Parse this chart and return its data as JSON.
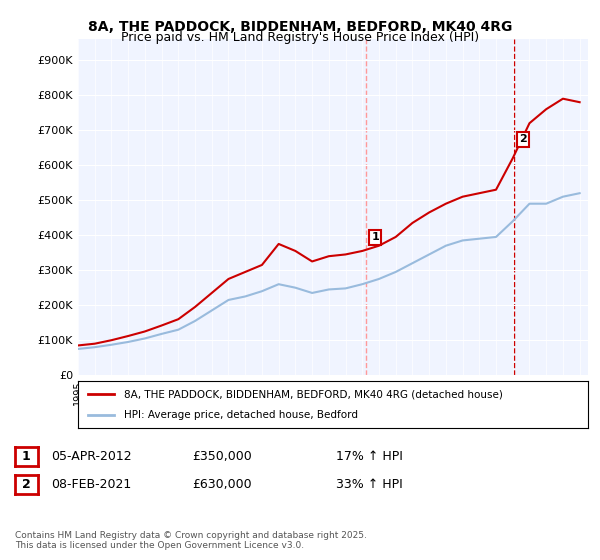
{
  "title_line1": "8A, THE PADDOCK, BIDDENHAM, BEDFORD, MK40 4RG",
  "title_line2": "Price paid vs. HM Land Registry's House Price Index (HPI)",
  "legend_label1": "8A, THE PADDOCK, BIDDENHAM, BEDFORD, MK40 4RG (detached house)",
  "legend_label2": "HPI: Average price, detached house, Bedford",
  "annotation1_label": "1",
  "annotation1_date": "05-APR-2012",
  "annotation1_price": "£350,000",
  "annotation1_hpi": "17% ↑ HPI",
  "annotation2_label": "2",
  "annotation2_date": "08-FEB-2021",
  "annotation2_price": "£630,000",
  "annotation2_hpi": "33% ↑ HPI",
  "footnote": "Contains HM Land Registry data © Crown copyright and database right 2025.\nThis data is licensed under the Open Government Licence v3.0.",
  "bg_color": "#ffffff",
  "plot_bg_color": "#f0f4ff",
  "red_line_color": "#cc0000",
  "blue_line_color": "#99bbdd",
  "vline_color": "#ff6666",
  "vline2_color": "#cc0000",
  "ylim": [
    0,
    960000
  ],
  "yticks": [
    0,
    100000,
    200000,
    300000,
    400000,
    500000,
    600000,
    700000,
    800000,
    900000
  ],
  "ytick_labels": [
    "£0",
    "£100K",
    "£200K",
    "£300K",
    "£400K",
    "£500K",
    "£600K",
    "£700K",
    "£800K",
    "£900K"
  ],
  "sale1_year": 2012.25,
  "sale1_price": 350000,
  "sale2_year": 2021.1,
  "sale2_price": 630000,
  "hpi_years": [
    1995,
    1996,
    1997,
    1998,
    1999,
    2000,
    2001,
    2002,
    2003,
    2004,
    2005,
    2006,
    2007,
    2008,
    2009,
    2010,
    2011,
    2012,
    2013,
    2014,
    2015,
    2016,
    2017,
    2018,
    2019,
    2020,
    2021,
    2022,
    2023,
    2024,
    2025
  ],
  "hpi_values": [
    75000,
    80000,
    87000,
    95000,
    105000,
    118000,
    130000,
    155000,
    185000,
    215000,
    225000,
    240000,
    260000,
    250000,
    235000,
    245000,
    248000,
    260000,
    275000,
    295000,
    320000,
    345000,
    370000,
    385000,
    390000,
    395000,
    440000,
    490000,
    490000,
    510000,
    520000
  ],
  "price_years": [
    1995,
    1996,
    1997,
    1998,
    1999,
    2000,
    2001,
    2002,
    2003,
    2004,
    2005,
    2006,
    2007,
    2008,
    2009,
    2010,
    2011,
    2012,
    2013,
    2014,
    2015,
    2016,
    2017,
    2018,
    2019,
    2020,
    2021,
    2022,
    2023,
    2024,
    2025
  ],
  "price_values": [
    85000,
    90000,
    100000,
    112000,
    125000,
    142000,
    160000,
    195000,
    235000,
    275000,
    295000,
    315000,
    375000,
    355000,
    325000,
    340000,
    345000,
    355000,
    370000,
    395000,
    435000,
    465000,
    490000,
    510000,
    520000,
    530000,
    620000,
    720000,
    760000,
    790000,
    780000
  ]
}
